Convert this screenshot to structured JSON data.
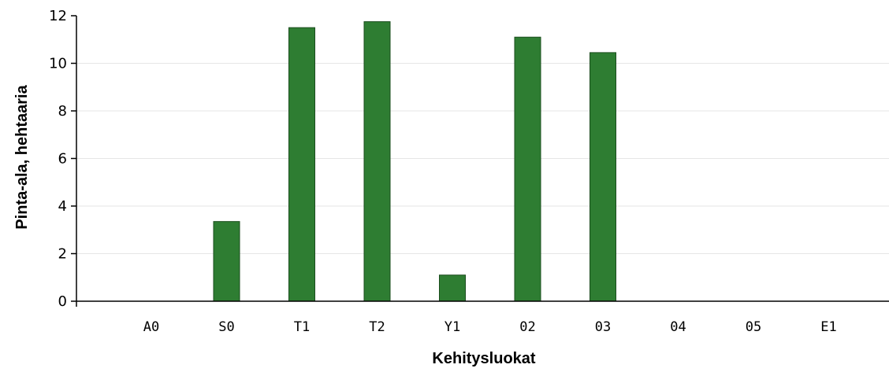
{
  "chart_data": {
    "type": "bar",
    "title": "",
    "xlabel": "Kehitysluokat",
    "ylabel": "Pinta-ala, hehtaaria",
    "categories": [
      "A0",
      "S0",
      "T1",
      "T2",
      "Y1",
      "02",
      "03",
      "04",
      "05",
      "E1"
    ],
    "values": [
      0,
      3.35,
      11.5,
      11.75,
      1.1,
      11.1,
      10.45,
      0,
      0,
      0
    ],
    "ylim": [
      0,
      12
    ],
    "yticks": [
      "0",
      "2",
      "4",
      "6",
      "8",
      "10",
      "12"
    ],
    "grid": true,
    "legend": "none",
    "bar_color": "#2e7d32",
    "bar_edge_color": "#1b4d1e"
  }
}
